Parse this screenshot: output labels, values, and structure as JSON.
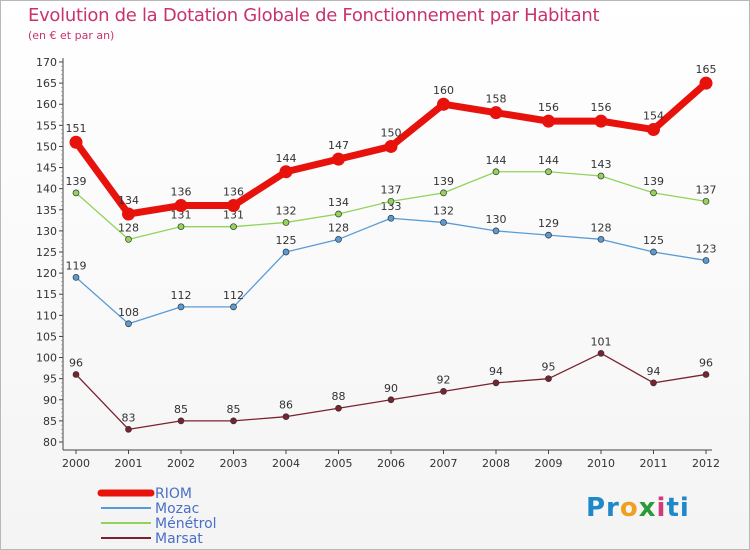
{
  "header": {
    "title": "Evolution de la Dotation Globale de Fonctionnement par Habitant",
    "subtitle": "(en € et par an)"
  },
  "logo": {
    "parts": [
      "Pr",
      "o",
      "x",
      "i",
      "ti"
    ],
    "colors": [
      "#1e88c8",
      "#f0a020",
      "#2a9a3a",
      "#d43a7a",
      "#1e88c8"
    ]
  },
  "chart_data": {
    "type": "line",
    "x": [
      "2000",
      "2001",
      "2002",
      "2003",
      "2004",
      "2005",
      "2006",
      "2007",
      "2008",
      "2009",
      "2010",
      "2011",
      "2012"
    ],
    "ylim": [
      80,
      170
    ],
    "yticks": [
      80,
      85,
      90,
      95,
      100,
      105,
      110,
      115,
      120,
      125,
      130,
      135,
      140,
      145,
      150,
      155,
      160,
      165,
      170
    ],
    "grid": false,
    "legend_position": "bottom-left",
    "series": [
      {
        "name": "RIOM",
        "color": "#e8120c",
        "values": [
          151,
          134,
          136,
          136,
          144,
          147,
          150,
          160,
          158,
          156,
          156,
          154,
          165
        ]
      },
      {
        "name": "Mozac",
        "color": "#5b9bd5",
        "values": [
          119,
          108,
          112,
          112,
          125,
          128,
          133,
          132,
          130,
          129,
          128,
          125,
          123
        ]
      },
      {
        "name": "Ménétrol",
        "color": "#92d35a",
        "values": [
          139,
          128,
          131,
          131,
          132,
          134,
          137,
          139,
          144,
          144,
          143,
          139,
          137
        ]
      },
      {
        "name": "Marsat",
        "color": "#7a2230",
        "values": [
          96,
          83,
          85,
          85,
          86,
          88,
          90,
          92,
          94,
          95,
          101,
          94,
          96
        ]
      }
    ]
  }
}
